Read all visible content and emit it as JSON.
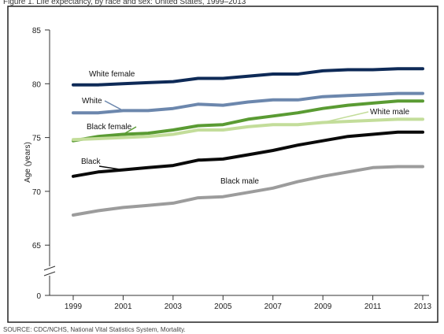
{
  "header": {
    "title": "Figure 1. Life expectancy, by race and sex: United States, 1999–2013"
  },
  "footer": {
    "source": "SOURCE: CDC/NCHS, National Vital Statistics System, Mortality."
  },
  "chart_data": {
    "type": "line",
    "title": "Figure 1. Life expectancy, by race and sex: United States, 1999–2013",
    "xlabel": "",
    "ylabel": "Age (years)",
    "x": [
      1999,
      2000,
      2001,
      2002,
      2003,
      2004,
      2005,
      2006,
      2007,
      2008,
      2009,
      2010,
      2011,
      2012,
      2013
    ],
    "x_ticks": [
      "1999",
      "2001",
      "2003",
      "2005",
      "2007",
      "2009",
      "2011",
      "2013"
    ],
    "y_ticks": [
      "0",
      "65",
      "70",
      "75",
      "80",
      "85"
    ],
    "ylim": [
      0,
      85
    ],
    "axis_break": true,
    "grid": false,
    "series": [
      {
        "name": "White female",
        "color": "#0e2a57",
        "values": [
          79.9,
          79.9,
          80.0,
          80.1,
          80.2,
          80.5,
          80.5,
          80.7,
          80.9,
          80.9,
          81.2,
          81.3,
          81.3,
          81.4,
          81.4
        ]
      },
      {
        "name": "White",
        "color": "#6c87ad",
        "values": [
          77.3,
          77.3,
          77.5,
          77.5,
          77.7,
          78.1,
          78.0,
          78.3,
          78.5,
          78.5,
          78.8,
          78.9,
          79.0,
          79.1,
          79.1
        ]
      },
      {
        "name": "Black female",
        "color": "#5a9b33",
        "values": [
          74.7,
          75.1,
          75.3,
          75.4,
          75.7,
          76.1,
          76.2,
          76.7,
          77.0,
          77.3,
          77.7,
          78.0,
          78.2,
          78.4,
          78.4
        ]
      },
      {
        "name": "White male",
        "color": "#c3dd9a",
        "values": [
          74.8,
          74.9,
          75.0,
          75.1,
          75.3,
          75.7,
          75.7,
          76.0,
          76.2,
          76.2,
          76.4,
          76.5,
          76.6,
          76.7,
          76.7
        ]
      },
      {
        "name": "Black",
        "color": "#0a0a0a",
        "values": [
          71.4,
          71.8,
          72.0,
          72.2,
          72.4,
          72.9,
          73.0,
          73.4,
          73.8,
          74.3,
          74.7,
          75.1,
          75.3,
          75.5,
          75.5
        ]
      },
      {
        "name": "Black male",
        "color": "#9c9c9c",
        "values": [
          67.8,
          68.2,
          68.5,
          68.7,
          68.9,
          69.4,
          69.5,
          69.9,
          70.3,
          70.9,
          71.4,
          71.8,
          72.2,
          72.3,
          72.3
        ]
      }
    ],
    "annotations": [
      {
        "series": "White female",
        "label": "White female",
        "pointer": false
      },
      {
        "series": "White",
        "label": "White",
        "pointer": true
      },
      {
        "series": "Black female",
        "label": "Black female",
        "pointer": true
      },
      {
        "series": "White male",
        "label": "White male",
        "pointer": true
      },
      {
        "series": "Black",
        "label": "Black",
        "pointer": true
      },
      {
        "series": "Black male",
        "label": "Black male",
        "pointer": false
      }
    ]
  }
}
